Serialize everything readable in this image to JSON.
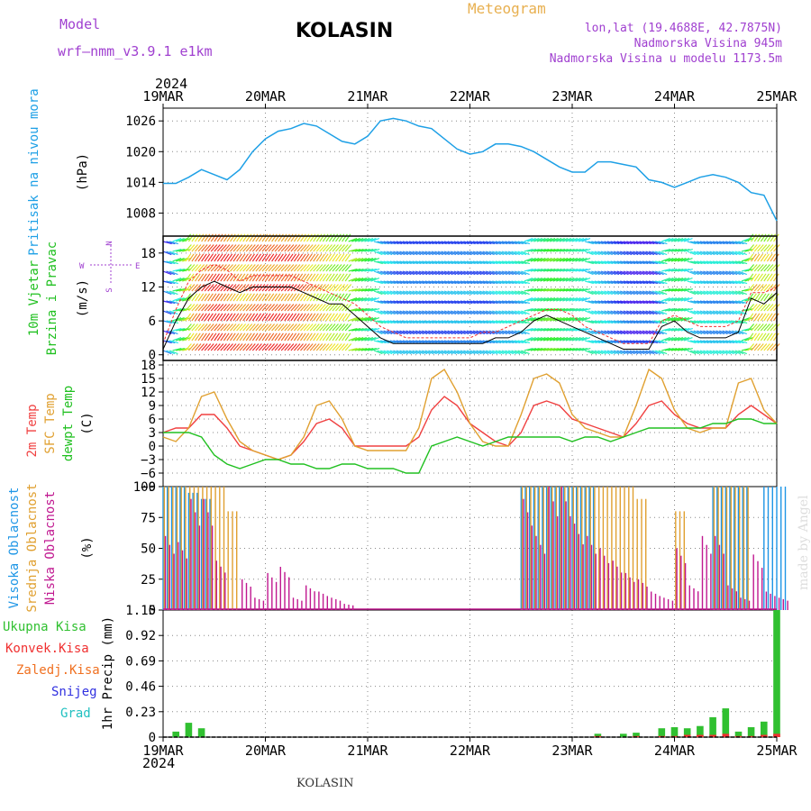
{
  "header": {
    "model_label": "Model",
    "model_name": "wrf—nmm_v3.9.1 e1km",
    "city": "KOLASIN",
    "meteogram": "Meteogram",
    "lonlat": "lon,lat (19.4688E, 42.7875N)",
    "altitude": "Nadmorska Visina 945m",
    "model_altitude": "Nadmorska Visina u modelu 1173.5m",
    "year": "2024",
    "footer_city": "KOLASIN",
    "watermark": "made by Angel"
  },
  "colors": {
    "pressure": "#1ea0e6",
    "temp2m": "#f04040",
    "sfc_temp": "#e0a030",
    "dewpt": "#20c020",
    "high_cloud": "#1e96e6",
    "mid_cloud": "#e0a030",
    "low_cloud": "#c01890",
    "total_precip": "#30c030",
    "conv_precip": "#f03030",
    "frozen_precip": "#f07020",
    "snow": "#3030e0",
    "hail": "#20c0c0",
    "purple_text": "#a040d0"
  },
  "chart_data": [
    {
      "type": "line",
      "name": "pressure",
      "ylabel_main": "Pritisak na nivou mora",
      "ylabel_unit": "(hPa)",
      "x_ticks": [
        "19MAR",
        "20MAR",
        "21MAR",
        "22MAR",
        "23MAR",
        "24MAR",
        "25MAR"
      ],
      "ylim": [
        1003.5,
        1028.5
      ],
      "yticks": [
        1008,
        1014,
        1020,
        1026
      ],
      "grid": true,
      "x_hours": [
        0,
        3,
        6,
        9,
        12,
        15,
        18,
        21,
        24,
        27,
        30,
        33,
        36,
        39,
        42,
        45,
        48,
        51,
        54,
        57,
        60,
        63,
        66,
        69,
        72,
        75,
        78,
        81,
        84,
        87,
        90,
        93,
        96,
        99,
        102,
        105,
        108,
        111,
        114,
        117,
        120,
        123,
        126,
        129,
        132,
        135,
        138,
        141,
        144
      ],
      "series": [
        {
          "values": [
            1013.8,
            1013.8,
            1015.0,
            1016.5,
            1015.5,
            1014.5,
            1016.5,
            1020.0,
            1022.5,
            1024.0,
            1024.5,
            1025.5,
            1025.0,
            1023.5,
            1022.0,
            1021.5,
            1023.0,
            1026.0,
            1026.5,
            1026.0,
            1025.0,
            1024.5,
            1022.5,
            1020.5,
            1019.5,
            1020.0,
            1021.5,
            1021.5,
            1021.0,
            1020.0,
            1018.5,
            1017.0,
            1016.0,
            1016.0,
            1018.0,
            1018.0,
            1017.5,
            1017.0,
            1014.5,
            1014.0,
            1013.0,
            1014.0,
            1015.0,
            1015.5,
            1015.0,
            1014.0,
            1012.0,
            1011.5,
            1006.5
          ]
        }
      ]
    },
    {
      "type": "line",
      "name": "wind",
      "ylabel_main": "10m Vjetar",
      "ylabel_main2": "Brzina i Pravac",
      "ylabel_unit": "(m/s)",
      "compass": "N S E W",
      "ylim": [
        -1,
        21
      ],
      "yticks": [
        0,
        6,
        12,
        18
      ],
      "grid": true,
      "x_hours": [
        0,
        3,
        6,
        9,
        12,
        15,
        18,
        21,
        24,
        27,
        30,
        33,
        36,
        39,
        42,
        45,
        48,
        51,
        54,
        57,
        60,
        63,
        66,
        69,
        72,
        75,
        78,
        81,
        84,
        87,
        90,
        93,
        96,
        99,
        102,
        105,
        108,
        111,
        114,
        117,
        120,
        123,
        126,
        129,
        132,
        135,
        138,
        141,
        144
      ],
      "series": [
        {
          "name": "speed",
          "values": [
            1,
            6,
            10,
            12,
            13,
            12,
            11,
            12,
            12,
            12,
            12,
            11,
            10,
            9,
            9,
            7,
            5,
            3,
            2,
            2,
            2,
            2,
            2,
            2,
            2,
            2,
            3,
            3,
            4,
            6,
            7,
            6,
            5,
            4,
            3,
            2,
            1,
            1,
            1,
            5,
            6,
            4,
            3,
            3,
            3,
            4,
            10,
            9,
            11
          ]
        },
        {
          "name": "gust",
          "values": [
            2,
            8,
            13,
            15,
            16,
            15,
            13,
            14,
            14,
            14,
            14,
            13,
            12,
            11,
            10,
            9,
            7,
            5,
            4,
            3,
            3,
            3,
            3,
            3,
            3,
            4,
            4,
            5,
            6,
            7,
            8,
            8,
            7,
            5,
            4,
            3,
            2,
            2,
            2,
            6,
            7,
            6,
            5,
            5,
            5,
            6,
            11,
            11,
            12
          ]
        }
      ]
    },
    {
      "type": "line",
      "name": "temperature",
      "ylabel_main": "2m Temp",
      "ylabel_main2": "SFC Temp",
      "ylabel_main3": "dewpt Temp",
      "ylabel_unit": "(C)",
      "ylim": [
        -9,
        19
      ],
      "yticks": [
        -9,
        -6,
        -3,
        0,
        3,
        6,
        9,
        12,
        15,
        18
      ],
      "grid": true,
      "x_hours": [
        0,
        3,
        6,
        9,
        12,
        15,
        18,
        21,
        24,
        27,
        30,
        33,
        36,
        39,
        42,
        45,
        48,
        51,
        54,
        57,
        60,
        63,
        66,
        69,
        72,
        75,
        78,
        81,
        84,
        87,
        90,
        93,
        96,
        99,
        102,
        105,
        108,
        111,
        114,
        117,
        120,
        123,
        126,
        129,
        132,
        135,
        138,
        141,
        144
      ],
      "series": [
        {
          "name": "2m Temp",
          "values": [
            3,
            4,
            4,
            7,
            7,
            4,
            0,
            -1,
            -2,
            -3,
            -2,
            1,
            5,
            6,
            4,
            0,
            0,
            0,
            0,
            0,
            2,
            8,
            11,
            9,
            5,
            3,
            1,
            0,
            3,
            9,
            10,
            9,
            6,
            5,
            4,
            3,
            2,
            5,
            9,
            10,
            7,
            5,
            4,
            4,
            4,
            7,
            9,
            7,
            5
          ]
        },
        {
          "name": "SFC Temp",
          "values": [
            2,
            1,
            4,
            11,
            12,
            6,
            1,
            -1,
            -2,
            -3,
            -2,
            2,
            9,
            10,
            6,
            0,
            -1,
            -1,
            -1,
            -1,
            4,
            15,
            17,
            12,
            5,
            1,
            0,
            0,
            7,
            15,
            16,
            14,
            7,
            4,
            3,
            2,
            2,
            9,
            17,
            15,
            8,
            4,
            3,
            4,
            4,
            14,
            15,
            8,
            5
          ]
        },
        {
          "name": "dewpt Temp",
          "values": [
            3,
            3,
            3,
            2,
            -2,
            -4,
            -5,
            -4,
            -3,
            -3,
            -4,
            -4,
            -5,
            -5,
            -4,
            -4,
            -5,
            -5,
            -5,
            -6,
            -6,
            0,
            1,
            2,
            1,
            0,
            1,
            2,
            2,
            2,
            2,
            2,
            1,
            2,
            2,
            1,
            2,
            3,
            4,
            4,
            4,
            4,
            4,
            5,
            5,
            6,
            6,
            5,
            5
          ]
        }
      ]
    },
    {
      "type": "bar",
      "name": "clouds",
      "ylabel_main": "Visoka Oblacnost",
      "ylabel_main2": "Srednja Oblacnost",
      "ylabel_main3": "Niska Oblacnost",
      "ylabel_unit": "(%)",
      "ylim": [
        0,
        100
      ],
      "yticks": [
        0,
        25,
        50,
        75,
        100
      ],
      "grid": true,
      "x_hours": [
        0,
        3,
        6,
        9,
        12,
        15,
        18,
        21,
        24,
        27,
        30,
        33,
        36,
        39,
        42,
        45,
        48,
        51,
        54,
        57,
        60,
        63,
        66,
        69,
        72,
        75,
        78,
        81,
        84,
        87,
        90,
        93,
        96,
        99,
        102,
        105,
        108,
        111,
        114,
        117,
        120,
        123,
        126,
        129,
        132,
        135,
        138,
        141,
        144
      ],
      "series": [
        {
          "name": "high",
          "values": [
            100,
            100,
            95,
            90,
            0,
            0,
            0,
            0,
            0,
            0,
            0,
            0,
            0,
            0,
            0,
            0,
            0,
            0,
            0,
            0,
            0,
            0,
            0,
            0,
            0,
            0,
            0,
            0,
            100,
            100,
            100,
            100,
            100,
            100,
            0,
            0,
            0,
            0,
            0,
            0,
            0,
            0,
            0,
            100,
            100,
            100,
            0,
            100,
            100
          ]
        },
        {
          "name": "mid",
          "values": [
            100,
            100,
            100,
            100,
            100,
            80,
            0,
            0,
            0,
            0,
            0,
            0,
            0,
            0,
            0,
            0,
            0,
            0,
            0,
            0,
            0,
            0,
            0,
            0,
            0,
            0,
            0,
            0,
            100,
            100,
            100,
            100,
            100,
            100,
            100,
            100,
            100,
            90,
            0,
            0,
            80,
            0,
            0,
            100,
            100,
            100,
            0,
            0,
            0
          ]
        },
        {
          "name": "low",
          "values": [
            60,
            55,
            90,
            90,
            40,
            0,
            25,
            10,
            30,
            35,
            10,
            20,
            15,
            10,
            5,
            0,
            0,
            0,
            0,
            0,
            0,
            0,
            0,
            0,
            0,
            0,
            0,
            0,
            90,
            60,
            100,
            100,
            70,
            60,
            50,
            40,
            30,
            25,
            15,
            10,
            50,
            20,
            60,
            60,
            20,
            10,
            45,
            15,
            10
          ]
        }
      ]
    },
    {
      "type": "bar",
      "name": "precipitation",
      "ylabel_main": "1hr Precip",
      "ylabel_unit": "(mm)",
      "legend": [
        "Ukupna Kisa",
        "Konvek.Kisa",
        "Zaledj.Kisa",
        "Snijeg",
        "Grad"
      ],
      "ylim": [
        0,
        1.15
      ],
      "yticks": [
        0,
        0.23,
        0.46,
        0.69,
        0.92,
        1.15
      ],
      "ytick_labels": [
        "0",
        "0.23",
        "0.46",
        "0.69",
        "0.92",
        "1.15"
      ],
      "grid": true,
      "x_hours": [
        0,
        3,
        6,
        9,
        12,
        15,
        18,
        21,
        24,
        27,
        30,
        33,
        36,
        39,
        42,
        45,
        48,
        51,
        54,
        57,
        60,
        63,
        66,
        69,
        72,
        75,
        78,
        81,
        84,
        87,
        90,
        93,
        96,
        99,
        102,
        105,
        108,
        111,
        114,
        117,
        120,
        123,
        126,
        129,
        132,
        135,
        138,
        141,
        144
      ],
      "series": [
        {
          "name": "Ukupna Kisa",
          "values": [
            0,
            0.05,
            0.13,
            0.08,
            0,
            0,
            0,
            0,
            0,
            0,
            0,
            0,
            0,
            0,
            0,
            0,
            0,
            0,
            0,
            0,
            0,
            0,
            0,
            0,
            0,
            0,
            0,
            0,
            0,
            0,
            0,
            0,
            0,
            0,
            0.03,
            0,
            0.03,
            0.04,
            0,
            0.08,
            0.09,
            0.08,
            0.1,
            0.18,
            0.26,
            0.05,
            0.09,
            0.14,
            1.15
          ]
        },
        {
          "name": "Konvek.Kisa",
          "values": [
            0,
            0,
            0,
            0,
            0,
            0,
            0,
            0,
            0,
            0,
            0,
            0,
            0,
            0,
            0,
            0,
            0,
            0,
            0,
            0,
            0,
            0,
            0,
            0,
            0,
            0,
            0,
            0,
            0,
            0,
            0,
            0,
            0,
            0,
            0.01,
            0,
            0,
            0.01,
            0,
            0.01,
            0.01,
            0.02,
            0.02,
            0.02,
            0.03,
            0.01,
            0.01,
            0.02,
            0.03
          ]
        }
      ]
    }
  ]
}
